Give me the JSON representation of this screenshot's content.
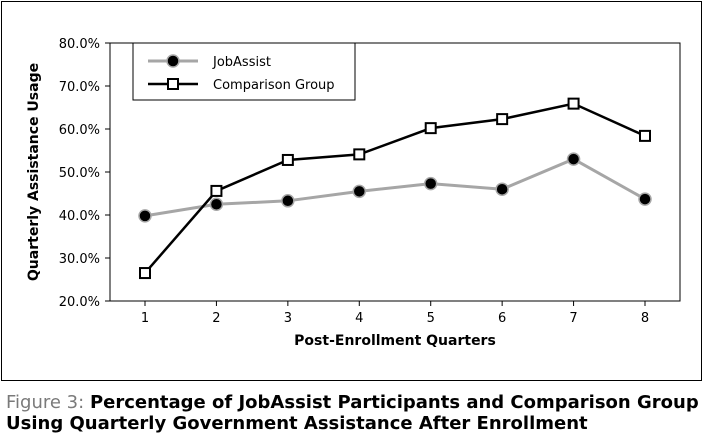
{
  "chart_data": {
    "type": "line",
    "title": "",
    "xlabel": "Post-Enrollment Quarters",
    "ylabel": "Quarterly Assistance Usage",
    "x": [
      1,
      2,
      3,
      4,
      5,
      6,
      7,
      8
    ],
    "x_ticks": [
      "1",
      "2",
      "3",
      "4",
      "5",
      "6",
      "7",
      "8"
    ],
    "ylim": [
      20,
      80
    ],
    "y_ticks": [
      "20.0%",
      "30.0%",
      "40.0%",
      "50.0%",
      "60.0%",
      "70.0%",
      "80.0%"
    ],
    "grid": false,
    "legend_position": "top-left",
    "series": [
      {
        "name": "JobAssist",
        "values": [
          39.8,
          42.5,
          43.3,
          45.5,
          47.3,
          46.0,
          53.0,
          43.7
        ],
        "color": "#a6a6a6",
        "marker": "filled-circle"
      },
      {
        "name": "Comparison Group",
        "values": [
          26.5,
          45.6,
          52.8,
          54.1,
          60.2,
          62.3,
          65.9,
          58.4
        ],
        "color": "#000000",
        "marker": "open-square"
      }
    ]
  },
  "caption": {
    "label": "Figure 3:",
    "text": "Percentage of JobAssist Participants and Comparison Group Using Quarterly Government Assistance After Enrollment"
  }
}
